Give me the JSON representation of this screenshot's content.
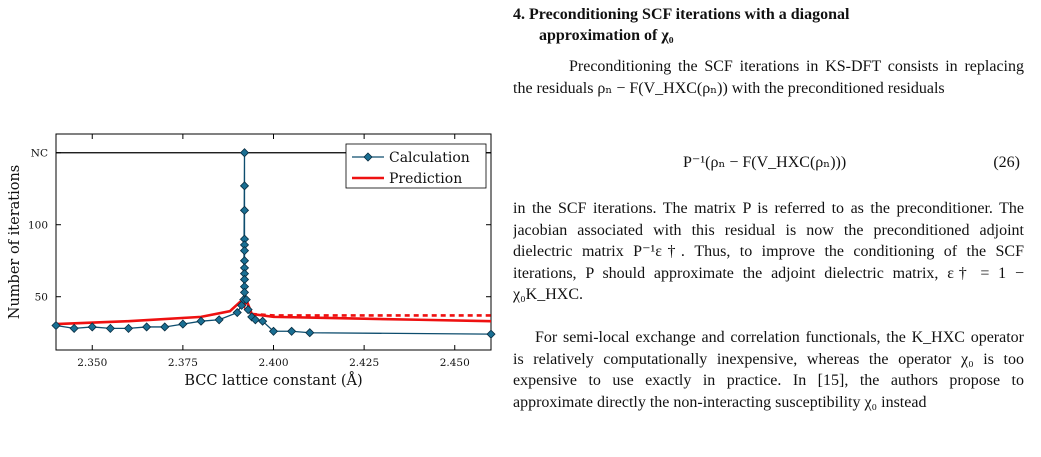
{
  "section": {
    "number_title_line1": "4. Preconditioning SCF iterations with a diagonal",
    "title_line2": "approximation of χ₀"
  },
  "paragraphs": {
    "p1": "Preconditioning the SCF iterations in KS-DFT consists in replacing the residuals ρₙ − F(V_HXC(ρₙ)) with the preconditioned residuals",
    "p2": "in the SCF iterations. The matrix P is referred to as the preconditioner. The jacobian associated with this residual is now the preconditioned adjoint dielectric matrix P⁻¹ε†. Thus, to improve the conditioning of the SCF iterations, P should approximate the adjoint dielectric matrix, ε† = 1 − χ₀K_HXC.",
    "p3": "For semi-local exchange and correlation functionals, the K_HXC operator is relatively computationally inexpensive, whereas the operator χ₀ is too expensive to use exactly in practice. In [15], the authors propose to approximate directly the non-interacting susceptibility χ₀ instead"
  },
  "equation": {
    "body": "P⁻¹(ρₙ − F(V_HXC(ρₙ)))",
    "number": "(26)"
  },
  "chart_data": {
    "type": "line",
    "xlabel": "BCC lattice constant (Å)",
    "ylabel": "Number of iterations",
    "xlim": [
      2.34,
      2.46
    ],
    "ylim": [
      13,
      163
    ],
    "x_ticks": [
      2.35,
      2.375,
      2.4,
      2.425,
      2.45
    ],
    "x_tick_labels": [
      "2.350",
      "2.375",
      "2.400",
      "2.425",
      "2.450"
    ],
    "y_ticks": [
      50,
      100,
      150
    ],
    "y_tick_labels": [
      "50",
      "100",
      "NC"
    ],
    "nc_value": 150,
    "legend_position": "top-right",
    "series": [
      {
        "name": "Calculation",
        "color": "#0d4d6e",
        "marker_fill": "#1a6f93",
        "marker": "diamond",
        "points": [
          [
            2.34,
            30
          ],
          [
            2.345,
            28
          ],
          [
            2.35,
            29
          ],
          [
            2.355,
            28
          ],
          [
            2.36,
            28
          ],
          [
            2.365,
            29
          ],
          [
            2.37,
            29
          ],
          [
            2.375,
            31
          ],
          [
            2.38,
            33
          ],
          [
            2.385,
            34
          ],
          [
            2.39,
            39
          ],
          [
            2.3912,
            44
          ],
          [
            2.3918,
            48
          ],
          [
            2.392,
            150
          ],
          [
            2.392,
            127
          ],
          [
            2.392,
            110
          ],
          [
            2.392,
            90
          ],
          [
            2.392,
            86
          ],
          [
            2.392,
            82
          ],
          [
            2.392,
            75
          ],
          [
            2.392,
            70
          ],
          [
            2.392,
            66
          ],
          [
            2.392,
            62
          ],
          [
            2.392,
            57
          ],
          [
            2.392,
            53
          ],
          [
            2.3925,
            48
          ],
          [
            2.393,
            41
          ],
          [
            2.394,
            36
          ],
          [
            2.395,
            34
          ],
          [
            2.397,
            33
          ],
          [
            2.4,
            26
          ],
          [
            2.405,
            26
          ],
          [
            2.41,
            25
          ],
          [
            2.46,
            24
          ]
        ]
      },
      {
        "name": "Prediction",
        "color": "#ee1111",
        "points": [
          [
            2.34,
            31
          ],
          [
            2.36,
            33
          ],
          [
            2.38,
            36
          ],
          [
            2.388,
            40
          ],
          [
            2.3915,
            48
          ],
          [
            2.392,
            44
          ],
          [
            2.3925,
            48
          ],
          [
            2.394,
            38
          ],
          [
            2.4,
            36
          ],
          [
            2.42,
            35
          ],
          [
            2.44,
            34
          ],
          [
            2.46,
            33
          ]
        ],
        "dashed_points": [
          [
            2.394,
            38
          ],
          [
            2.4,
            37
          ],
          [
            2.42,
            37
          ],
          [
            2.44,
            37
          ],
          [
            2.46,
            37
          ]
        ]
      }
    ]
  }
}
